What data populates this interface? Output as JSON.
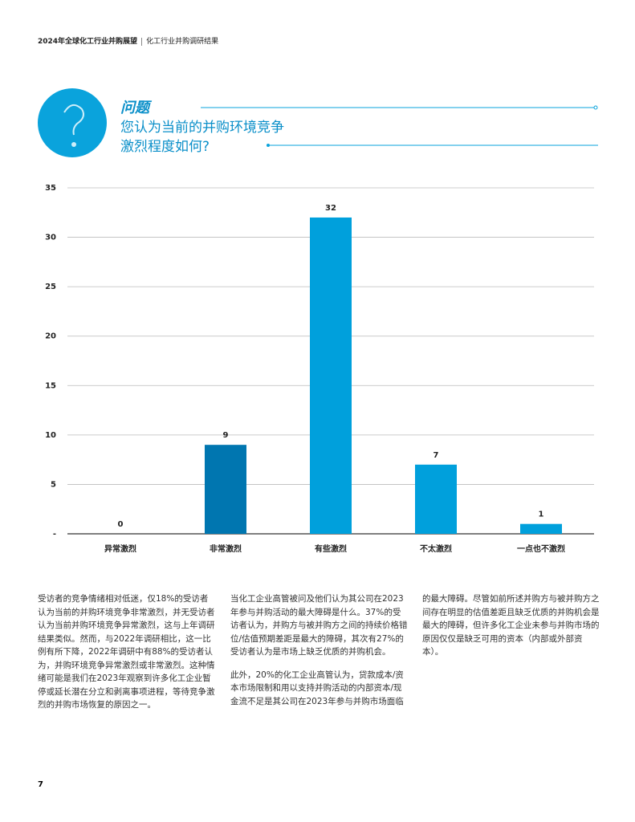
{
  "header": {
    "title": "2024年全球化工行业并购展望",
    "section": "化工行业并购调研结果"
  },
  "question": {
    "label": "问题",
    "lines": [
      "您认为当前的并购环境竞争",
      "激烈程度如何?"
    ]
  },
  "chart_data": {
    "type": "bar",
    "categories": [
      "异常激烈",
      "非常激烈",
      "有些激烈",
      "不太激烈",
      "一点也不激烈"
    ],
    "values": [
      0,
      9,
      32,
      7,
      1
    ],
    "colors": [
      "#00a0dc",
      "#0076b0",
      "#00a0dc",
      "#00a0dc",
      "#00a0dc"
    ],
    "ylim": [
      0,
      35
    ],
    "yticks": [
      {
        "value": 0,
        "label": "-"
      },
      5,
      10,
      15,
      20,
      25,
      30,
      35
    ],
    "grid": true
  },
  "body": {
    "columns": [
      [
        "受访者的竞争情绪相对低迷，仅18%的受访者认为当前的并购环境竞争非常激烈，并无受访者认为当前并购环境竞争异常激烈，这与上年调研结果类似。然而，与2022年调研相比，这一比例有所下降，2022年调研中有88%的受访者认为，并购环境竞争异常激烈或非常激烈。这种情绪可能是我们在2023年观察到许多化工企业暂停或延长潜在分立和剥离事项进程，等待竞争激烈的并购市场恢复的原因之一。"
      ],
      [
        "当化工企业高管被问及他们认为其公司在2023年参与并购活动的最大障碍是什么。37%的受访者认为，并购方与被并购方之间的持续价格错位/估值预期差距是最大的障碍，其次有27%的受访者认为是市场上缺乏优质的并购机会。",
        "此外，20%的化工企业高管认为，贷款成本/资本市场限制和用以支持并购活动的内部资本/现金流不足是其公司在2023年参与并购市场面临"
      ],
      [
        "的最大障碍。尽管如前所述并购方与被并购方之间存在明显的估值差距且缺乏优质的并购机会是最大的障碍，但许多化工企业未参与并购市场的原因仅仅是缺乏可用的资本（内部或外部资本）。"
      ]
    ]
  },
  "page_number": "7"
}
